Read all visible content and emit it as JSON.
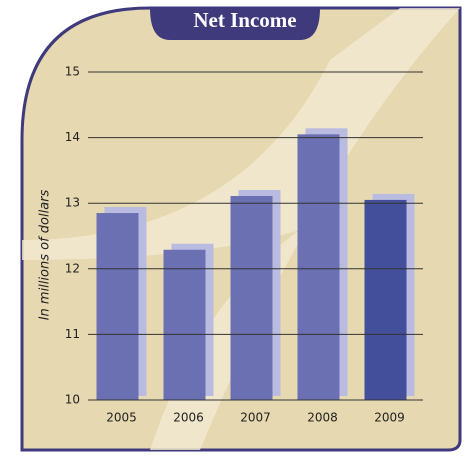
{
  "chart_data": {
    "type": "bar",
    "title": "Net Income",
    "y_label": "In millions of dollars",
    "categories": [
      "2005",
      "2006",
      "2007",
      "2008",
      "2009"
    ],
    "values": [
      12.85,
      12.29,
      13.11,
      14.05,
      13.05
    ],
    "colors": [
      "#6b70b2",
      "#6b70b2",
      "#6b70b2",
      "#6b70b2",
      "#434f9a"
    ],
    "ylim": [
      10,
      15
    ],
    "yticks": [
      10,
      11,
      12,
      13,
      14,
      15
    ],
    "grid": true
  }
}
